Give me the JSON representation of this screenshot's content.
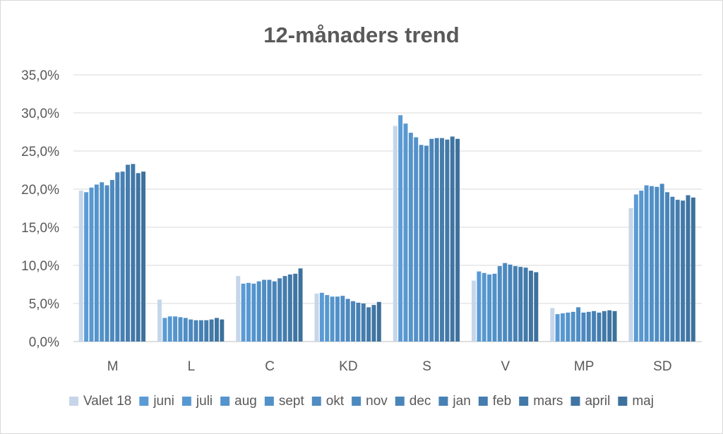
{
  "chart_data": {
    "type": "bar",
    "title": "12-månaders trend",
    "xlabel": "",
    "ylabel": "",
    "ylim": [
      0,
      35
    ],
    "yticks": [
      "0,0%",
      "5,0%",
      "10,0%",
      "15,0%",
      "20,0%",
      "25,0%",
      "30,0%",
      "35,0%"
    ],
    "grid": true,
    "legend_position": "bottom",
    "categories": [
      "M",
      "L",
      "C",
      "KD",
      "S",
      "V",
      "MP",
      "SD"
    ],
    "series": [
      {
        "name": "Valet 18",
        "color": "#c6d6ea",
        "values": [
          19.8,
          5.5,
          8.6,
          6.3,
          28.3,
          8.0,
          4.4,
          17.5
        ]
      },
      {
        "name": "juni",
        "color": "#5b9bd5",
        "values": [
          19.6,
          3.1,
          7.6,
          6.4,
          29.7,
          9.2,
          3.6,
          19.3
        ]
      },
      {
        "name": "juli",
        "color": "#5898d1",
        "values": [
          20.2,
          3.3,
          7.7,
          6.1,
          28.6,
          9.0,
          3.7,
          19.8
        ]
      },
      {
        "name": "aug",
        "color": "#5594cc",
        "values": [
          20.6,
          3.3,
          7.6,
          5.9,
          27.4,
          8.8,
          3.8,
          20.5
        ]
      },
      {
        "name": "sept",
        "color": "#5291c8",
        "values": [
          20.9,
          3.2,
          7.9,
          5.9,
          26.8,
          8.9,
          3.9,
          20.4
        ]
      },
      {
        "name": "okt",
        "color": "#4f8dc3",
        "values": [
          20.5,
          3.1,
          8.1,
          6.0,
          25.8,
          9.9,
          4.5,
          20.3
        ]
      },
      {
        "name": "nov",
        "color": "#4c89bf",
        "values": [
          21.2,
          2.9,
          8.1,
          5.6,
          25.7,
          10.3,
          3.8,
          20.7
        ]
      },
      {
        "name": "dec",
        "color": "#4a85ba",
        "values": [
          22.2,
          2.8,
          7.9,
          5.3,
          26.6,
          10.1,
          3.9,
          19.6
        ]
      },
      {
        "name": "jan",
        "color": "#4781b4",
        "values": [
          22.3,
          2.8,
          8.3,
          5.1,
          26.7,
          9.9,
          4.0,
          19.0
        ]
      },
      {
        "name": "feb",
        "color": "#457dae",
        "values": [
          23.2,
          2.8,
          8.6,
          5.0,
          26.7,
          9.8,
          3.8,
          18.6
        ]
      },
      {
        "name": "mars",
        "color": "#4279a8",
        "values": [
          23.3,
          2.9,
          8.8,
          4.5,
          26.5,
          9.7,
          4.0,
          18.5
        ]
      },
      {
        "name": "april",
        "color": "#4075a3",
        "values": [
          22.1,
          3.1,
          8.9,
          4.8,
          26.9,
          9.3,
          4.1,
          19.2
        ]
      },
      {
        "name": "maj",
        "color": "#3d719d",
        "values": [
          22.3,
          2.9,
          9.6,
          5.2,
          26.6,
          9.1,
          4.0,
          18.9
        ]
      }
    ]
  }
}
